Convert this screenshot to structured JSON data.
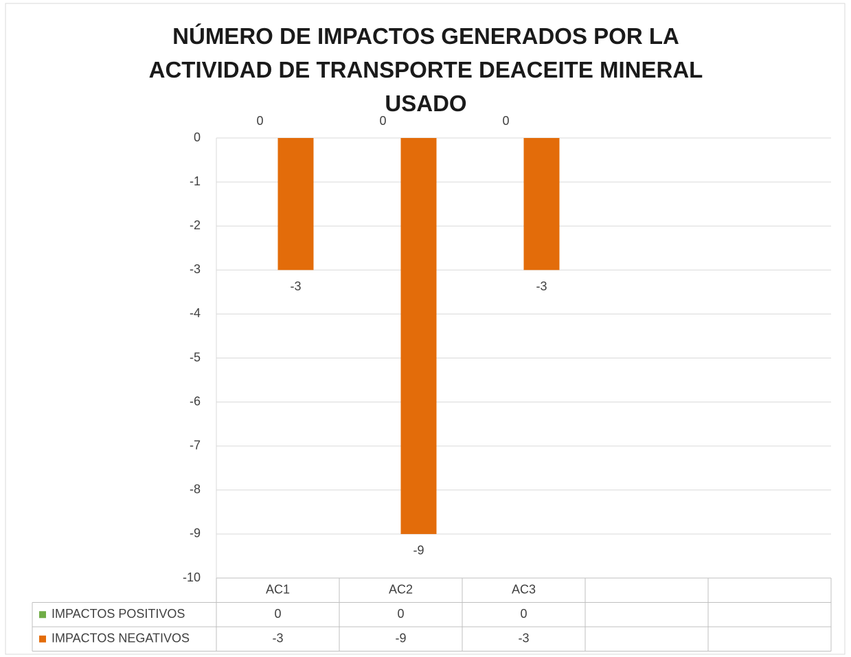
{
  "chart_data": {
    "type": "bar",
    "title": "NÚMERO DE IMPACTOS GENERADOS POR LA ACTIVIDAD DE TRANSPORTE DEACEITE MINERAL USADO",
    "categories": [
      "AC1",
      "AC2",
      "AC3",
      null,
      null
    ],
    "series": [
      {
        "name": "IMPACTOS POSITIVOS",
        "color": "#70ad47",
        "values": [
          0,
          0,
          0,
          null,
          null
        ]
      },
      {
        "name": "IMPACTOS NEGATIVOS",
        "color": "#e36c0a",
        "values": [
          -3,
          -9,
          -3,
          null,
          null
        ]
      }
    ],
    "ylim": [
      -10,
      0
    ],
    "yticks": [
      0,
      -1,
      -2,
      -3,
      -4,
      -5,
      -6,
      -7,
      -8,
      -9,
      -10
    ],
    "grid": true,
    "data_table": true
  }
}
